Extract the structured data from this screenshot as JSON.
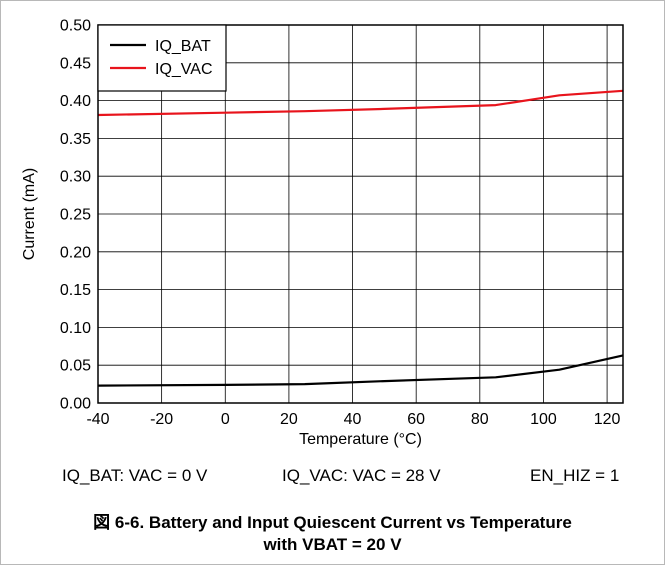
{
  "chart_data": {
    "type": "line",
    "xlabel": "Temperature (°C)",
    "ylabel": "Current (mA)",
    "xlim": [
      -40,
      125
    ],
    "ylim": [
      0,
      0.5
    ],
    "x_ticks": [
      "-40",
      "-20",
      "0",
      "20",
      "40",
      "60",
      "80",
      "100",
      "120"
    ],
    "y_ticks": [
      "0.00",
      "0.05",
      "0.10",
      "0.15",
      "0.20",
      "0.25",
      "0.30",
      "0.35",
      "0.40",
      "0.45",
      "0.50"
    ],
    "grid": true,
    "legend_position": "top-left",
    "series": [
      {
        "name": "IQ_BAT",
        "color": "#000000",
        "x": [
          -40,
          0,
          25,
          50,
          85,
          105,
          125
        ],
        "y": [
          0.023,
          0.024,
          0.025,
          0.029,
          0.034,
          0.044,
          0.063
        ]
      },
      {
        "name": "IQ_VAC",
        "color": "#e8141c",
        "x": [
          -40,
          0,
          25,
          50,
          85,
          105,
          125
        ],
        "y": [
          0.381,
          0.384,
          0.386,
          0.389,
          0.394,
          0.407,
          0.413
        ]
      }
    ]
  },
  "notes": {
    "left": "IQ_BAT: VAC = 0 V",
    "middle": "IQ_VAC: VAC = 28 V",
    "right": "EN_HIZ = 1"
  },
  "caption": {
    "line1": "図 6-6. Battery and Input Quiescent Current vs Temperature",
    "line2": "with VBAT = 20 V"
  }
}
